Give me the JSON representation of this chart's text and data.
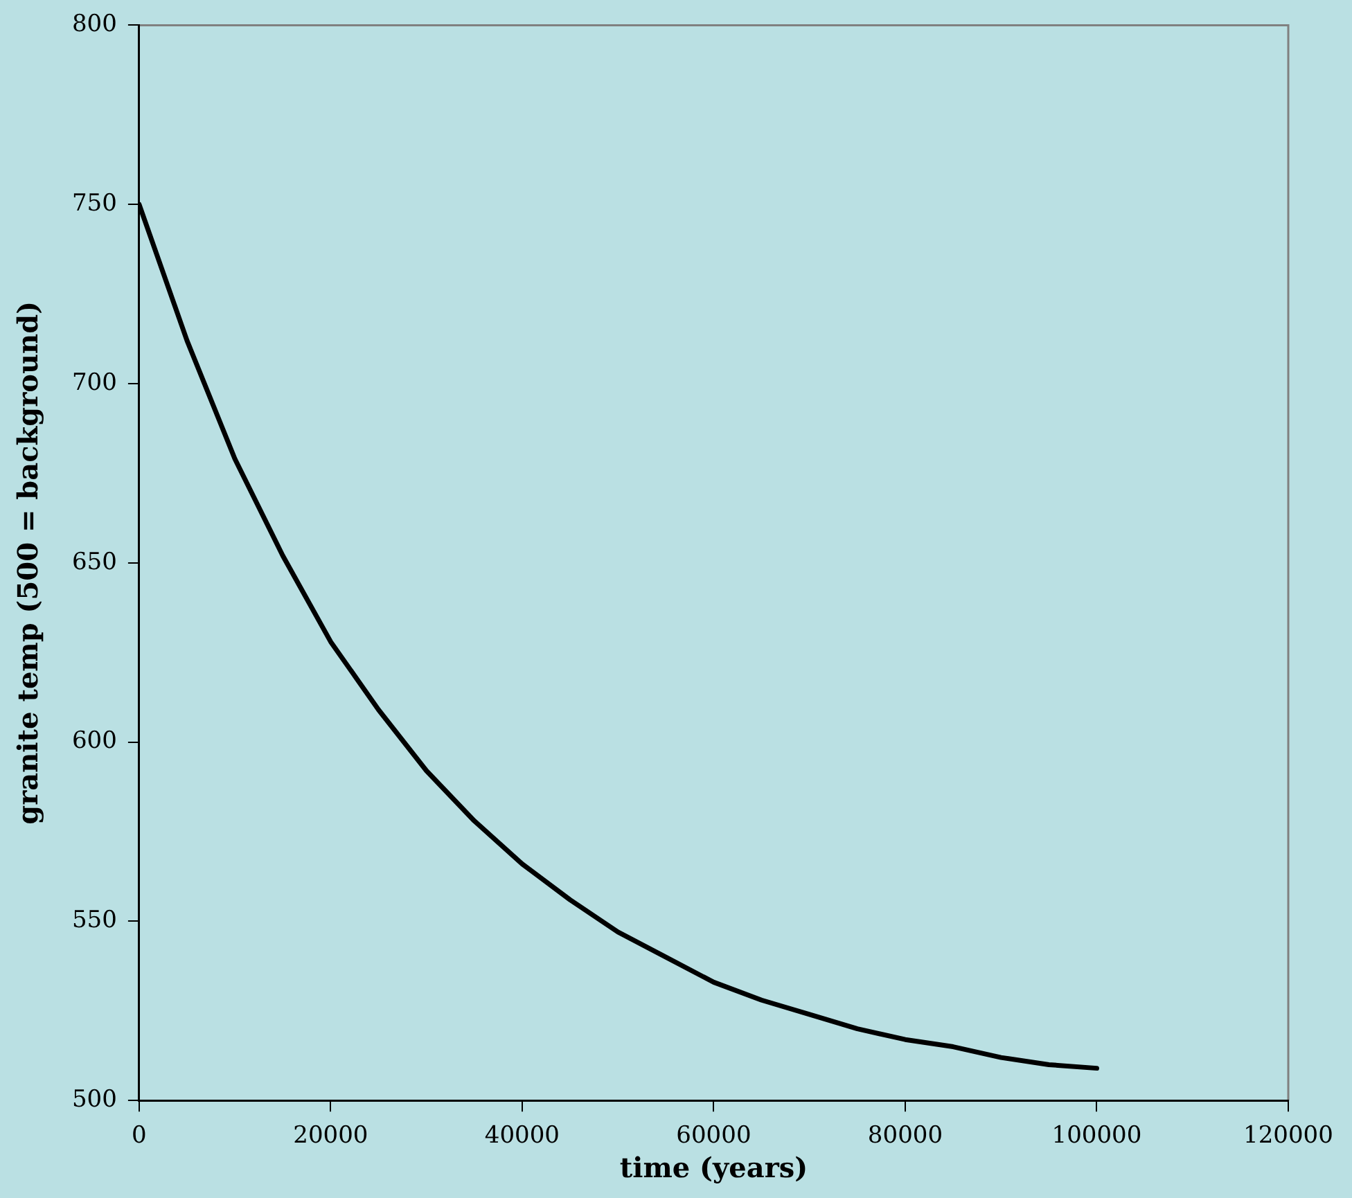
{
  "chart_data": {
    "type": "line",
    "xlabel": "time (years)",
    "ylabel": "granite temp (500 = background)",
    "x": [
      0,
      5000,
      10000,
      15000,
      20000,
      25000,
      30000,
      35000,
      40000,
      45000,
      50000,
      55000,
      60000,
      65000,
      70000,
      75000,
      80000,
      85000,
      90000,
      95000,
      100000
    ],
    "series": [
      {
        "color": "#000000",
        "values": [
          750,
          712,
          679,
          652,
          628,
          609,
          592,
          578,
          566,
          556,
          547,
          540,
          533,
          528,
          524,
          520,
          517,
          515,
          512,
          510,
          509
        ]
      }
    ],
    "xlim": [
      0,
      120000
    ],
    "xticks": [
      0,
      20000,
      40000,
      60000,
      80000,
      100000,
      120000
    ],
    "ylim": [
      500,
      800
    ],
    "yticks": [
      500,
      550,
      600,
      650,
      700,
      750,
      800
    ],
    "grid": false,
    "legend": false,
    "marker": "none",
    "line_style": "solid"
  }
}
